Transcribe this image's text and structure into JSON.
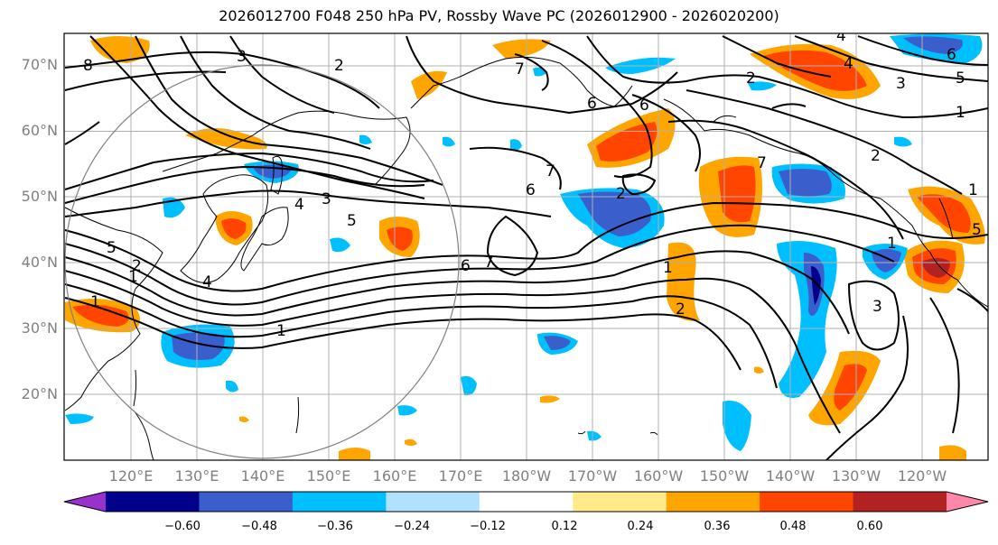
{
  "title": "2026012700 F048 250 hPa PV, Rossby Wave PC (2026012900 - 2026020200)",
  "lat_labels": [
    "70°N",
    "60°N",
    "50°N",
    "40°N",
    "30°N",
    "20°N"
  ],
  "lon_labels": [
    "120°E",
    "130°E",
    "140°E",
    "150°E",
    "160°E",
    "170°E",
    "180°W",
    "170°W",
    "160°W",
    "150°W",
    "140°W",
    "130°W",
    "120°W"
  ],
  "colorbar": {
    "ticks": [
      "−0.60",
      "−0.48",
      "−0.36",
      "−0.24",
      "−0.12",
      "0.12",
      "0.24",
      "0.36",
      "0.48",
      "0.60"
    ],
    "colors": [
      "#9932cc",
      "#00008b",
      "#3a5fcd",
      "#00bfff",
      "#b0e2ff",
      "#ffffff",
      "#ffeb8a",
      "#ffa500",
      "#ff4500",
      "#b22222",
      "#ff88aa"
    ]
  },
  "contour_labels": [
    "8",
    "2",
    "3",
    "4",
    "5",
    "6",
    "7",
    "1",
    "2",
    "6",
    "7",
    "3",
    "4",
    "5",
    "1",
    "6",
    "7",
    "1",
    "2",
    "7",
    "2",
    "1",
    "1",
    "3",
    "4",
    "5",
    "6",
    "1",
    "2",
    "3",
    "4",
    "5",
    "6",
    "1",
    "2"
  ]
}
